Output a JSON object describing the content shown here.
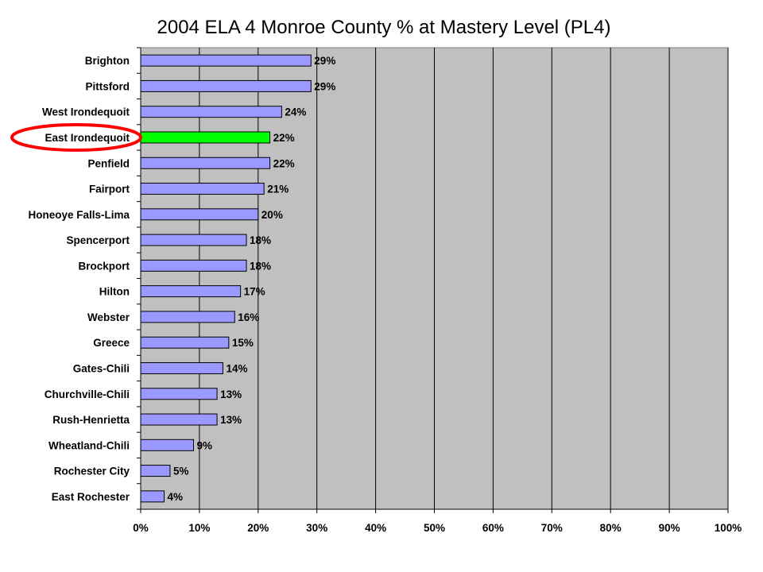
{
  "chart_data": {
    "type": "bar",
    "orientation": "horizontal",
    "title": "2004 ELA 4 Monroe County % at Mastery Level (PL4)",
    "categories": [
      "Brighton",
      "Pittsford",
      "West Irondequoit",
      "East Irondequoit",
      "Penfield",
      "Fairport",
      "Honeoye Falls-Lima",
      "Spencerport",
      "Brockport",
      "Hilton",
      "Webster",
      "Greece",
      "Gates-Chili",
      "Churchville-Chili",
      "Rush-Henrietta",
      "Wheatland-Chili",
      "Rochester City",
      "East Rochester"
    ],
    "values": [
      29,
      29,
      24,
      22,
      22,
      21,
      20,
      18,
      18,
      17,
      16,
      15,
      14,
      13,
      13,
      9,
      5,
      4
    ],
    "value_labels": [
      "29%",
      "29%",
      "24%",
      "22%",
      "22%",
      "21%",
      "20%",
      "18%",
      "18%",
      "17%",
      "16%",
      "15%",
      "14%",
      "13%",
      "13%",
      "9%",
      "5%",
      "4%"
    ],
    "xlim": [
      0,
      100
    ],
    "x_ticks": [
      "0%",
      "10%",
      "20%",
      "30%",
      "40%",
      "50%",
      "60%",
      "70%",
      "80%",
      "90%",
      "100%"
    ],
    "highlighted_category": "East Irondequoit",
    "grid": "vertical",
    "colors": {
      "bar": "#9999ff",
      "highlight_bar": "#00ff00",
      "plot_background": "#c0c0c0",
      "gridline": "#000000",
      "highlight_ellipse": "#ff0000"
    }
  }
}
